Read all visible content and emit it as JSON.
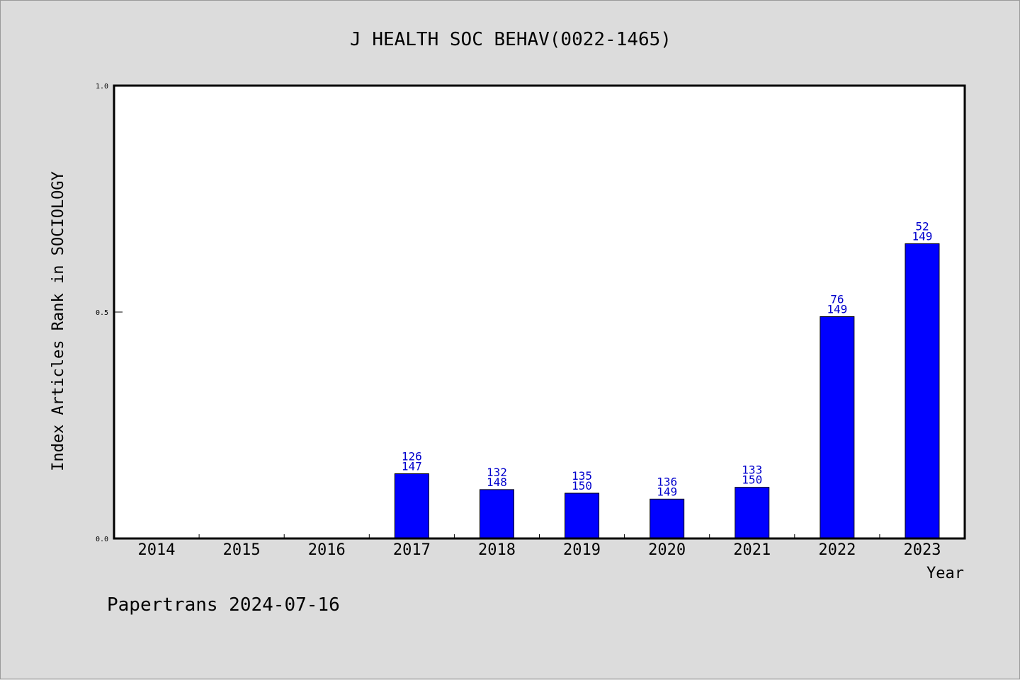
{
  "chart_data": {
    "type": "bar",
    "title": "J HEALTH SOC BEHAV(0022-1465)",
    "xlabel": "Year",
    "ylabel": "Index Articles Rank in SOCIOLOGY",
    "ylim": [
      0,
      1
    ],
    "yticks": [
      "0.0",
      "0.5",
      "1.0"
    ],
    "ytick_values": [
      0,
      0.5,
      1
    ],
    "grid": false,
    "bar_color": "#0000ff",
    "label_color": "#0000cc",
    "categories": [
      "2014",
      "2015",
      "2016",
      "2017",
      "2018",
      "2019",
      "2020",
      "2021",
      "2022",
      "2023"
    ],
    "values": [
      null,
      null,
      null,
      0.143,
      0.108,
      0.1,
      0.087,
      0.113,
      0.49,
      0.651
    ],
    "labels": [
      null,
      null,
      null,
      [
        "126",
        "147"
      ],
      [
        "132",
        "148"
      ],
      [
        "135",
        "150"
      ],
      [
        "136",
        "149"
      ],
      [
        "133",
        "150"
      ],
      [
        "76",
        "149"
      ],
      [
        "52",
        "149"
      ]
    ]
  },
  "footer": "Papertrans 2024-07-16"
}
